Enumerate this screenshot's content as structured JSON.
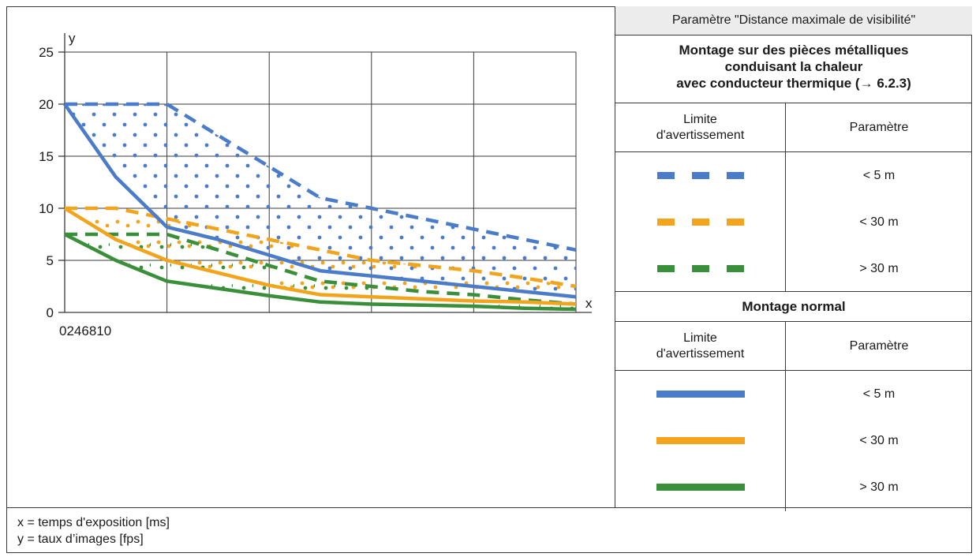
{
  "legend": {
    "header": "Paramètre \"Distance maximale de visibilité\"",
    "section1_title_line1": "Montage sur des pièces métalliques",
    "section1_title_line2": "conduisant la chaleur",
    "section1_title_line3": "avec conducteur thermique (→ 6.2.3)",
    "col_limit_line1": "Limite",
    "col_limit_line2": "d'avertissement",
    "col_param": "Paramètre",
    "section1_rows": [
      {
        "color": "#4a7cc9",
        "style": "dashed",
        "label": "< 5 m"
      },
      {
        "color": "#f2a51c",
        "style": "dashed",
        "label": "< 30 m"
      },
      {
        "color": "#3a8f3a",
        "style": "dashed",
        "label": "> 30 m"
      }
    ],
    "section2_title": "Montage normal",
    "section2_rows": [
      {
        "color": "#4a7cc9",
        "style": "solid",
        "label": "< 5 m"
      },
      {
        "color": "#f2a51c",
        "style": "solid",
        "label": "< 30 m"
      },
      {
        "color": "#3a8f3a",
        "style": "solid",
        "label": "> 30 m"
      }
    ]
  },
  "notes": {
    "x_def": "x = temps d'exposition [ms]",
    "y_def": "y = taux d’images [fps]"
  },
  "chart_data": {
    "type": "line",
    "xlabel": "x",
    "ylabel": "y",
    "xlim": [
      0,
      10
    ],
    "ylim": [
      0,
      25
    ],
    "x_tick_labels_text": "0246810",
    "y_ticks": [
      0,
      5,
      10,
      15,
      20,
      25
    ],
    "grid": true,
    "series": [
      {
        "color": "#4a7cc9",
        "style": "dashed",
        "x": [
          0,
          1,
          2,
          3,
          4,
          5,
          6,
          7,
          8,
          9,
          10
        ],
        "y": [
          20,
          20,
          20,
          17,
          14,
          11,
          10,
          9,
          8,
          7,
          6
        ]
      },
      {
        "color": "#f2a51c",
        "style": "dashed",
        "x": [
          0,
          1,
          2,
          3,
          4,
          5,
          6,
          7,
          8,
          9,
          10
        ],
        "y": [
          10,
          10,
          9,
          8,
          7,
          6,
          5,
          4.5,
          4,
          3.3,
          2.5
        ]
      },
      {
        "color": "#3a8f3a",
        "style": "dashed",
        "x": [
          0,
          1,
          2,
          3,
          4,
          5,
          6,
          7,
          8,
          9,
          10
        ],
        "y": [
          7.5,
          7.5,
          7.5,
          6,
          4.5,
          3,
          2.5,
          2,
          1.7,
          1.2,
          0.8
        ]
      },
      {
        "color": "#4a7cc9",
        "style": "solid",
        "x": [
          0,
          1,
          2,
          3,
          4,
          5,
          6,
          7,
          8,
          9,
          10
        ],
        "y": [
          20,
          13,
          8.2,
          7,
          5.5,
          4,
          3.5,
          3,
          2.5,
          2,
          1.5
        ]
      },
      {
        "color": "#f2a51c",
        "style": "solid",
        "x": [
          0,
          1,
          2,
          3,
          4,
          5,
          6,
          7,
          8,
          9,
          10
        ],
        "y": [
          10,
          7,
          5,
          3.8,
          2.6,
          1.7,
          1.5,
          1.3,
          1.1,
          1.0,
          0.8
        ]
      },
      {
        "color": "#3a8f3a",
        "style": "solid",
        "x": [
          0,
          1,
          2,
          3,
          4,
          5,
          6,
          7,
          8,
          9,
          10
        ],
        "y": [
          7.5,
          5,
          3,
          2.3,
          1.6,
          1,
          0.8,
          0.7,
          0.6,
          0.4,
          0.3
        ]
      }
    ],
    "shaded_regions": [
      {
        "color": "#4a7cc9",
        "between": [
          "blue dashed",
          "blue solid"
        ]
      },
      {
        "color": "#f2a51c",
        "between": [
          "orange dashed",
          "orange solid"
        ]
      },
      {
        "color": "#3a8f3a",
        "between": [
          "green dashed",
          "green solid"
        ]
      }
    ]
  }
}
